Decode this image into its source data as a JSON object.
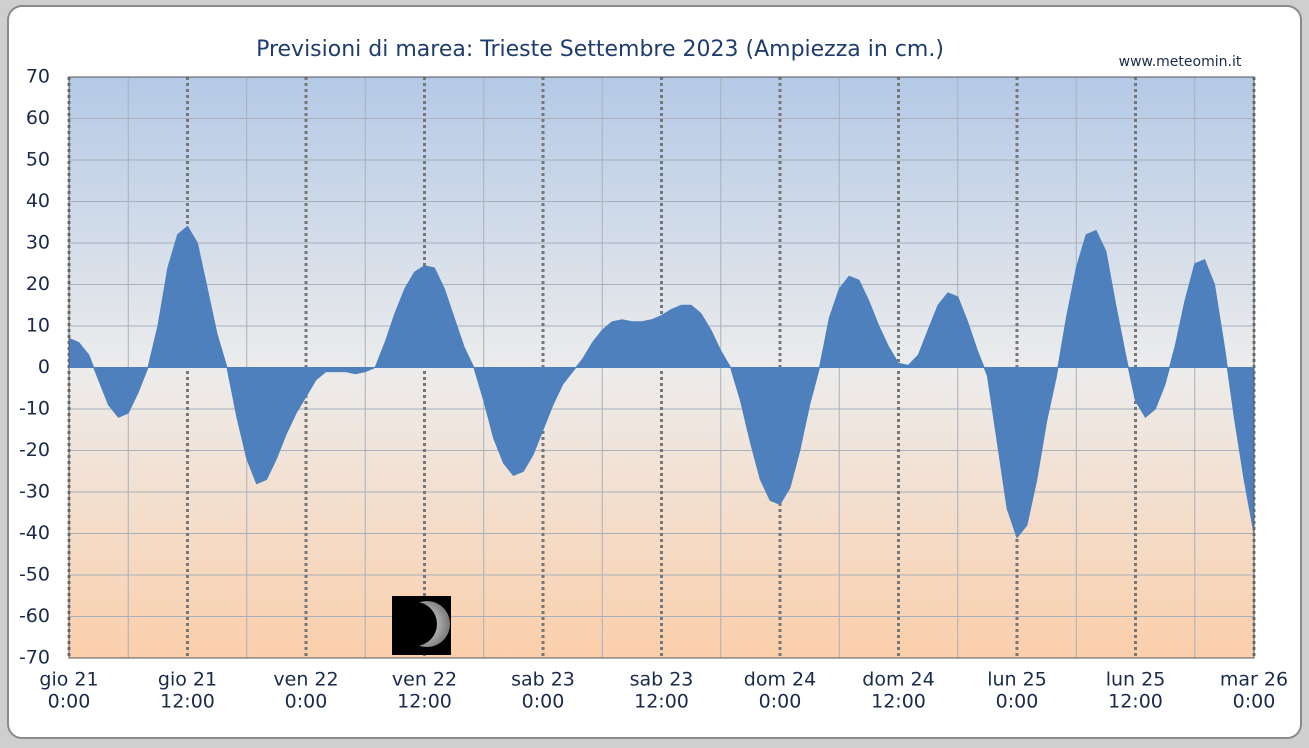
{
  "chart_data": {
    "type": "area",
    "title": "Previsioni di marea: Trieste Settembre 2023 (Ampiezza in cm.)",
    "source": "www.meteomin.it",
    "color": "#4d80bd",
    "x": [
      0,
      1,
      2,
      3,
      4,
      5,
      6,
      7,
      8,
      9,
      10,
      11,
      12,
      13,
      14,
      15,
      16,
      17,
      18,
      19,
      20,
      21,
      22,
      23,
      24,
      25,
      26,
      27,
      28,
      29,
      30,
      31,
      32,
      33,
      34,
      35,
      36,
      37,
      38,
      39,
      40,
      41,
      42,
      43,
      44,
      45,
      46,
      47,
      48,
      49,
      50,
      51,
      52,
      53,
      54,
      55,
      56,
      57,
      58,
      59,
      60,
      61,
      62,
      63,
      64,
      65,
      66,
      67,
      68,
      69,
      70,
      71,
      72,
      73,
      74,
      75,
      76,
      77,
      78,
      79,
      80,
      81,
      82,
      83,
      84,
      85,
      86,
      87,
      88,
      89,
      90,
      91,
      92,
      93,
      94,
      95,
      96,
      97,
      98,
      99,
      100,
      101,
      102,
      103,
      104,
      105,
      106,
      107,
      108,
      109,
      110,
      111,
      112,
      113,
      114,
      115,
      116,
      117,
      118,
      119,
      120
    ],
    "values": [
      7,
      6,
      3,
      -3,
      -9,
      -12,
      -11,
      -6,
      0,
      10,
      24,
      32,
      34,
      30,
      19,
      8,
      0,
      -12,
      -22,
      -28,
      -27,
      -22,
      -16,
      -11,
      -7,
      -3,
      -1,
      -1,
      -1,
      -1.5,
      -1,
      0,
      6,
      13,
      19,
      23,
      24.5,
      24,
      19,
      12,
      5,
      0,
      -8,
      -17,
      -23,
      -26,
      -25,
      -21,
      -15,
      -9,
      -4,
      -1,
      2,
      6,
      9,
      11,
      11.5,
      11,
      11,
      11.5,
      12.5,
      14,
      15,
      15,
      13,
      9,
      4,
      0,
      -8,
      -18,
      -27,
      -32,
      -33,
      -29,
      -20,
      -9,
      0,
      12,
      19,
      22,
      21,
      16,
      10,
      5,
      1,
      0.5,
      3,
      9,
      15,
      18,
      17,
      11,
      4,
      -2,
      -18,
      -34,
      -41,
      -38,
      -27,
      -13,
      -2,
      12,
      24,
      32,
      33,
      28,
      15,
      3,
      -8,
      -12,
      -10,
      -4,
      5,
      16,
      25,
      26,
      20,
      5,
      -12,
      -27,
      -40
    ],
    "xlim": [
      0,
      120
    ],
    "xticks": [
      {
        "value": 0,
        "label": [
          "gio 21",
          "0:00"
        ]
      },
      {
        "value": 12,
        "label": [
          "gio 21",
          "12:00"
        ]
      },
      {
        "value": 24,
        "label": [
          "ven 22",
          "0:00"
        ]
      },
      {
        "value": 36,
        "label": [
          "ven 22",
          "12:00"
        ]
      },
      {
        "value": 48,
        "label": [
          "sab 23",
          "0:00"
        ]
      },
      {
        "value": 60,
        "label": [
          "sab 23",
          "12:00"
        ]
      },
      {
        "value": 72,
        "label": [
          "dom 24",
          "0:00"
        ]
      },
      {
        "value": 84,
        "label": [
          "dom 24",
          "12:00"
        ]
      },
      {
        "value": 96,
        "label": [
          "lun 25",
          "0:00"
        ]
      },
      {
        "value": 108,
        "label": [
          "lun 25",
          "12:00"
        ]
      },
      {
        "value": 120,
        "label": [
          "mar 26",
          "0:00"
        ]
      }
    ],
    "xminorticks": [
      6,
      18,
      30,
      42,
      54,
      66,
      78,
      90,
      102,
      114
    ],
    "ylim": [
      -70,
      70
    ],
    "yticks": [
      -70,
      -60,
      -50,
      -40,
      -30,
      -20,
      -10,
      0,
      10,
      20,
      30,
      40,
      50,
      60,
      70
    ],
    "grid": true
  }
}
